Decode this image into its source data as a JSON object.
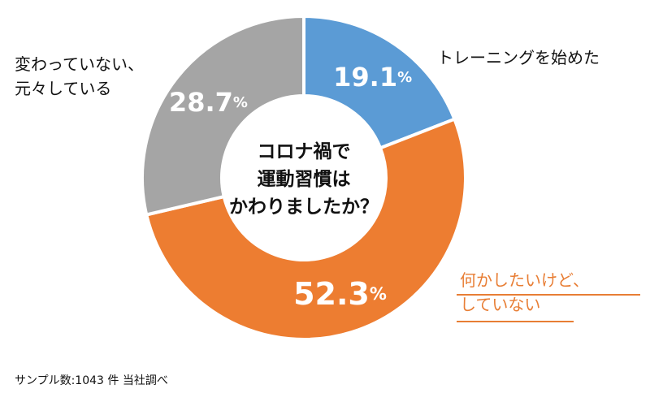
{
  "chart_data": {
    "type": "pie",
    "title": "コロナ禍で運動習慣はかわりましたか？",
    "title_lines": [
      "コロナ禍で",
      "運動習慣は",
      "かわりましたか？"
    ],
    "slices": [
      {
        "label": "トレーニングを始めた",
        "label_lines": [
          "トレーニングを始めた"
        ],
        "value": 19.1,
        "value_text": "19.1",
        "color": "#5B9BD5"
      },
      {
        "label": "何かしたいけど、していない",
        "label_lines": [
          "何かしたいけど、",
          "していない"
        ],
        "value": 52.3,
        "value_text": "52.3",
        "color": "#ED7D31"
      },
      {
        "label": "変わっていない、元々している",
        "label_lines": [
          "変わっていない、",
          "元々している"
        ],
        "value": 28.7,
        "value_text": "28.7",
        "color": "#A5A5A5"
      }
    ],
    "unit": "%",
    "start": "12 o'clock",
    "direction": "clockwise",
    "donut": true,
    "legend": "none"
  },
  "footnote": "サンプル数:1043 件 当社調べ"
}
